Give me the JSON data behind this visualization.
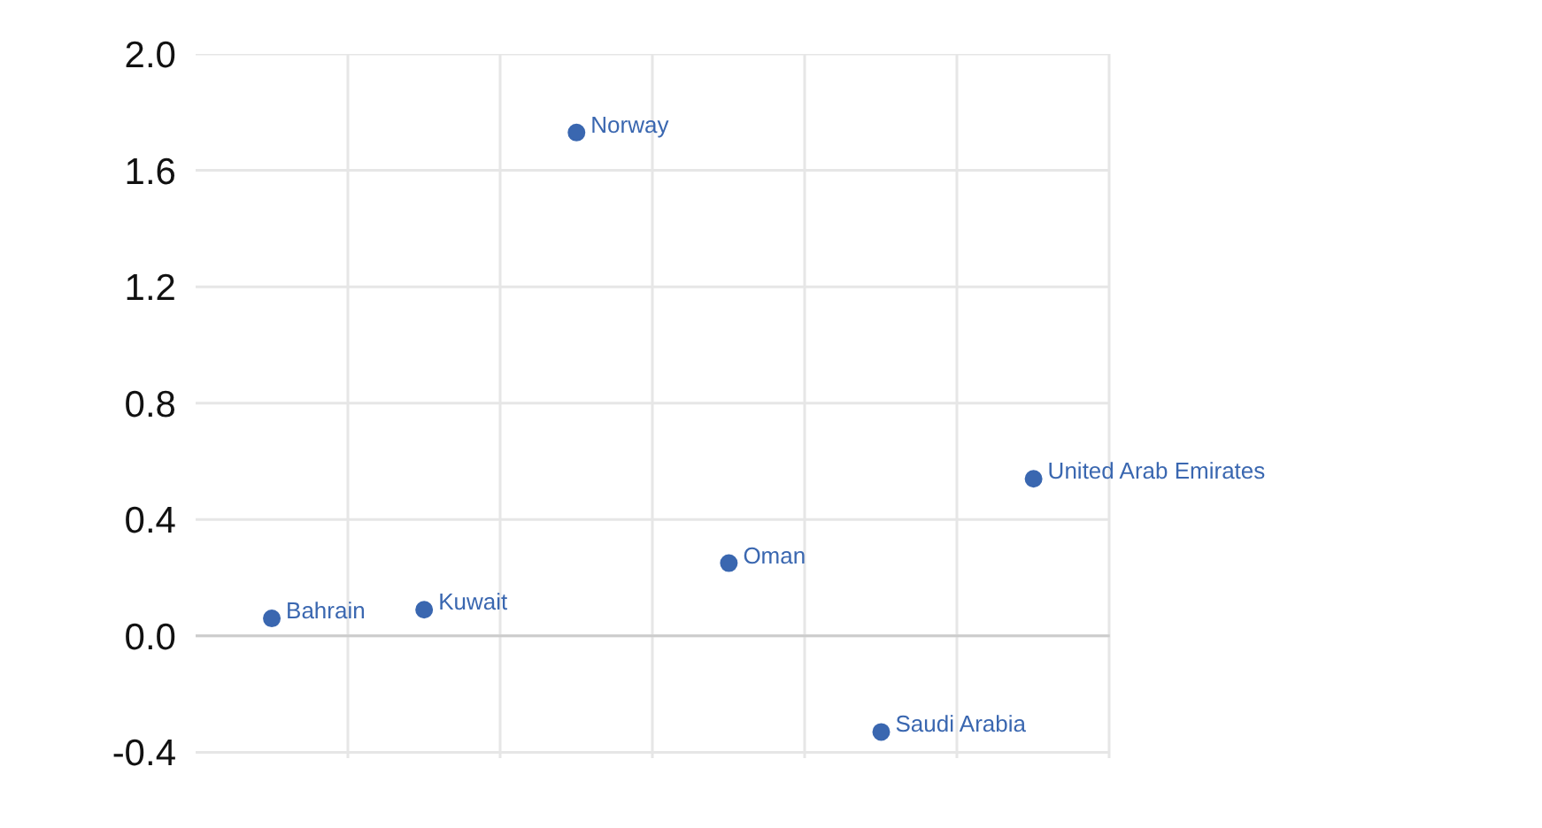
{
  "chart_data": {
    "type": "scatter",
    "categories": [
      null,
      null,
      null,
      null,
      null,
      null
    ],
    "series": [
      {
        "name": "Bahrain",
        "color": "#3a67b0",
        "values": [
          0.06,
          null,
          null,
          null,
          null,
          null
        ]
      },
      {
        "name": "Kuwait",
        "color": "#3a67b0",
        "values": [
          null,
          0.09,
          null,
          null,
          null,
          null
        ]
      },
      {
        "name": "Norway",
        "color": "#3a67b0",
        "values": [
          null,
          null,
          1.73,
          null,
          null,
          null
        ]
      },
      {
        "name": "Oman",
        "color": "#3a67b0",
        "values": [
          null,
          null,
          null,
          0.25,
          null,
          null
        ]
      },
      {
        "name": "Saudi Arabia",
        "color": "#3a67b0",
        "values": [
          null,
          null,
          null,
          null,
          -0.33,
          null
        ]
      },
      {
        "name": "United Arab Emirates",
        "color": "#3a67b0",
        "values": [
          null,
          null,
          null,
          null,
          null,
          0.54
        ]
      }
    ],
    "ylim": [
      -0.42,
      2.0
    ],
    "yticks": [
      {
        "value": -0.4,
        "label": "-0.4"
      },
      {
        "value": 0.0,
        "label": "0.0"
      },
      {
        "value": 0.4,
        "label": "0.4"
      },
      {
        "value": 0.8,
        "label": "0.8"
      },
      {
        "value": 1.2,
        "label": "1.2"
      },
      {
        "value": 1.6,
        "label": "1.6"
      },
      {
        "value": 2.0,
        "label": "2.0"
      }
    ],
    "grid": true,
    "marker": "circle"
  }
}
